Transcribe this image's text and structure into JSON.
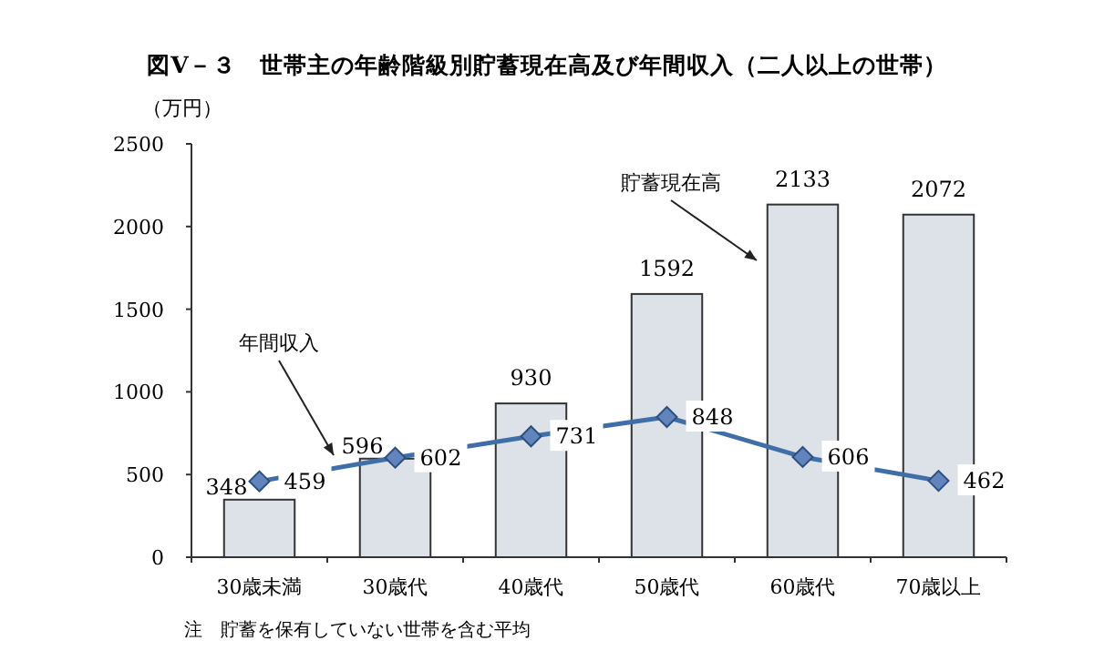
{
  "chart_data": {
    "type": "bar",
    "title": "図Ⅴ－３　世帯主の年齢階級別貯蓄現在高及び年間収入（二人以上の世帯）",
    "ylabel": "（万円）",
    "categories": [
      "30歳未満",
      "30歳代",
      "40歳代",
      "50歳代",
      "60歳代",
      "70歳以上"
    ],
    "series": [
      {
        "color": "#dde1e8",
        "values": [
          348,
          596,
          930,
          1592,
          2133,
          2072
        ]
      },
      {
        "type": "line",
        "color": "#3f6fa8",
        "marker": "diamond",
        "values": [
          459,
          602,
          731,
          848,
          606,
          462
        ]
      }
    ],
    "ylim": [
      0,
      2500
    ],
    "yticks": [
      0,
      500,
      1000,
      1500,
      2000,
      2500
    ],
    "data_labels": true,
    "grid": false,
    "annotations": [
      "貯蓄現在高",
      "年間収入",
      "注　貯蓄を保有していない世帯を含む平均"
    ]
  }
}
